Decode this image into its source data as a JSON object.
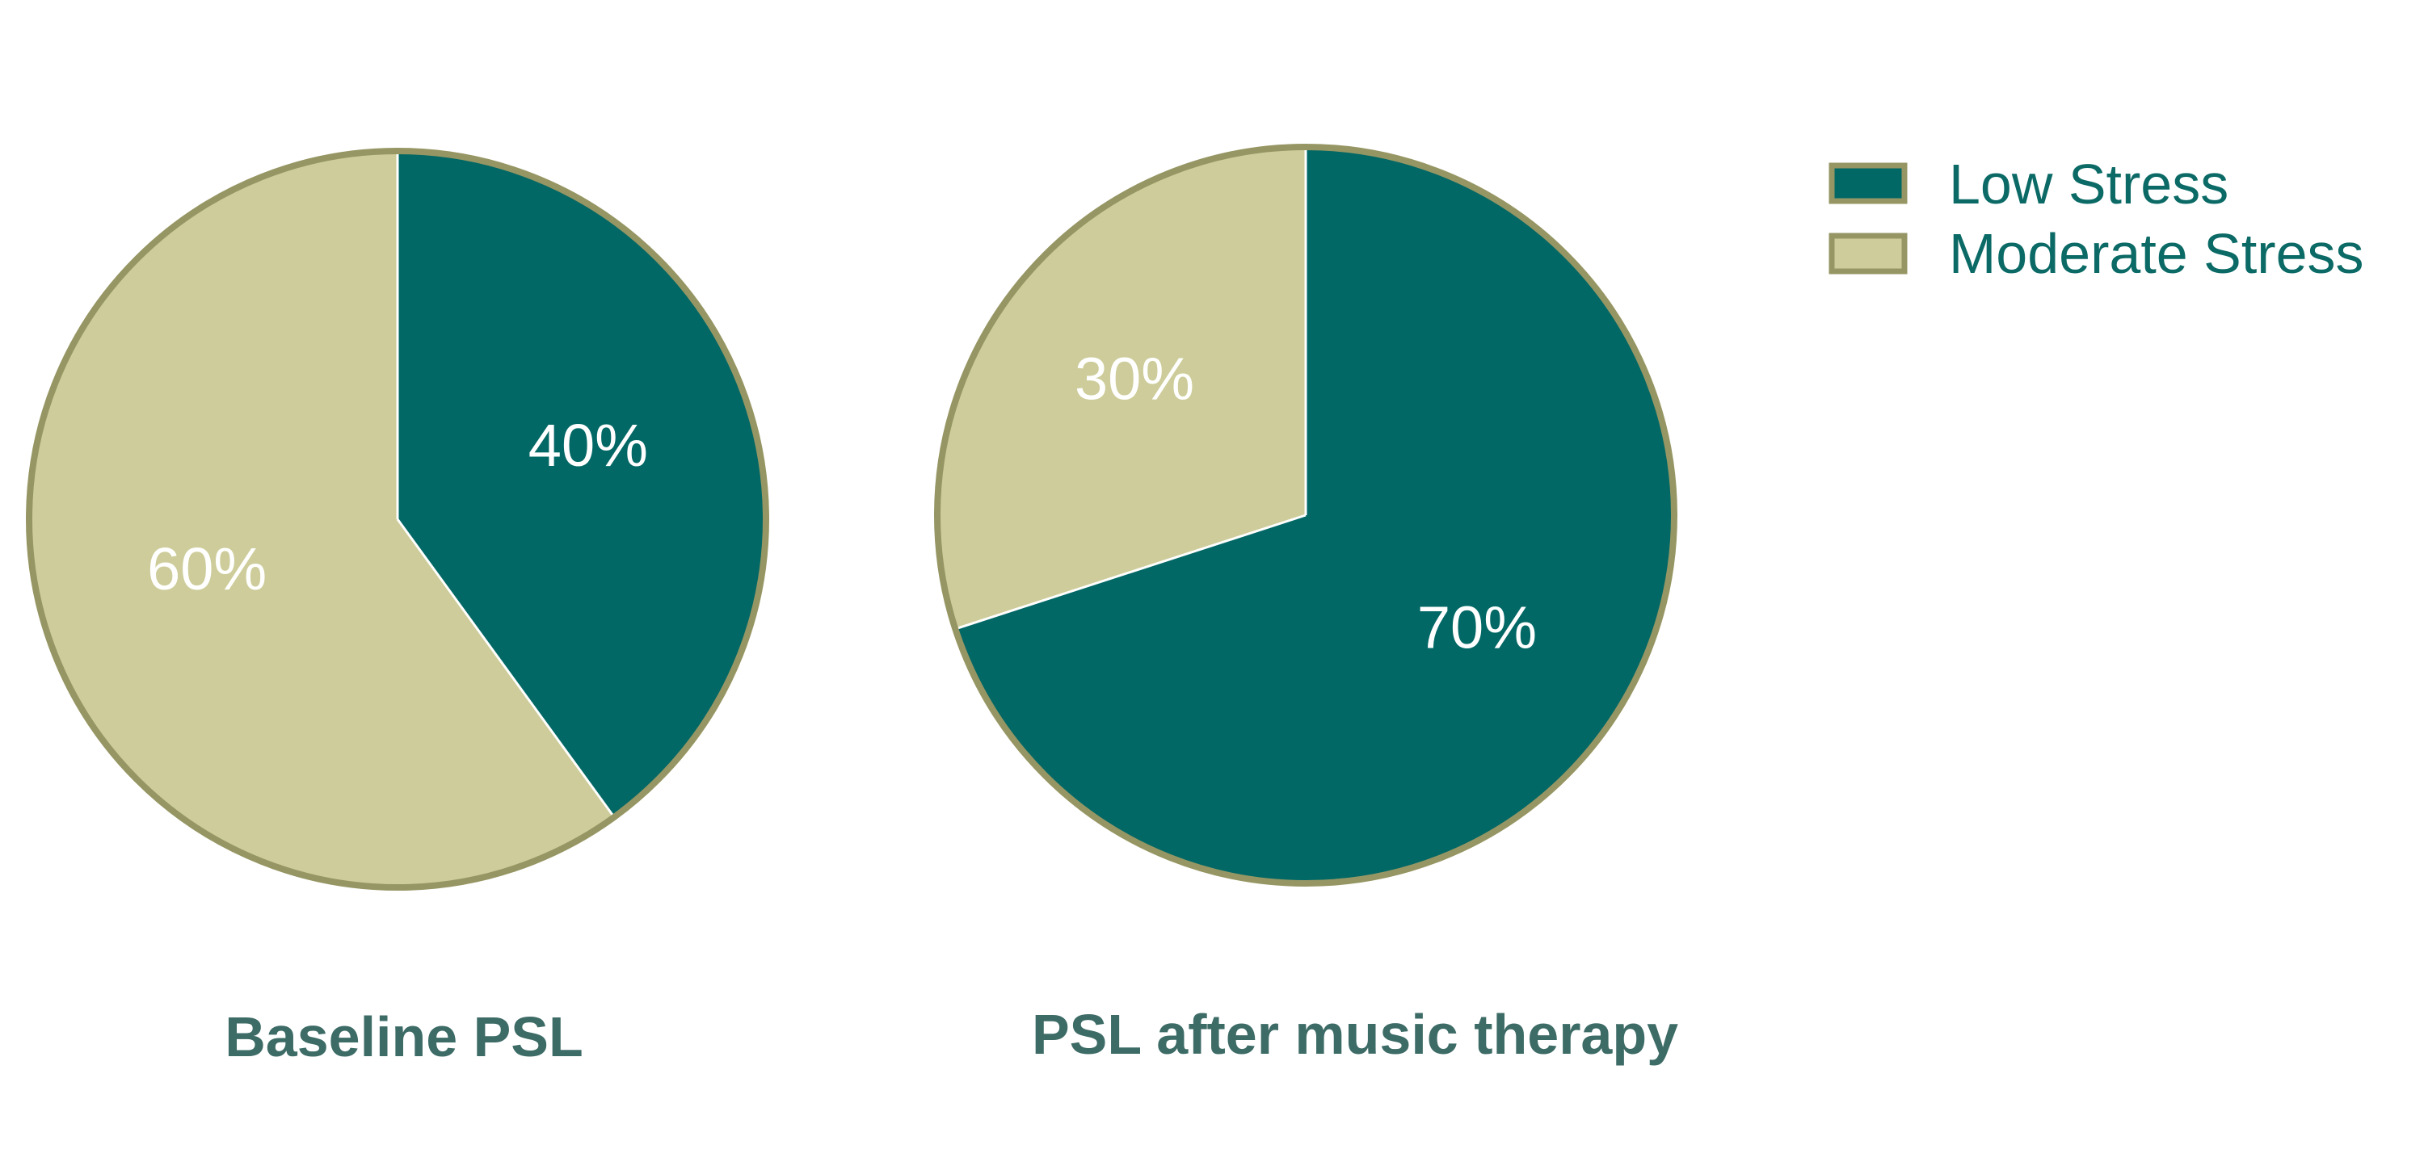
{
  "chart_data": [
    {
      "type": "pie",
      "title": "Baseline PSL",
      "start_angle_deg": 90,
      "direction": "clockwise",
      "slices": [
        {
          "label": "Low Stress",
          "value": 40,
          "value_label": "40%",
          "color": "#026865"
        },
        {
          "label": "Moderate Stress",
          "value": 60,
          "value_label": "60%",
          "color": "#cdcc9a"
        }
      ]
    },
    {
      "type": "pie",
      "title": "PSL after music therapy",
      "start_angle_deg": 90,
      "direction": "clockwise",
      "slices": [
        {
          "label": "Low Stress",
          "value": 70,
          "value_label": "70%",
          "color": "#026865"
        },
        {
          "label": "Moderate Stress",
          "value": 30,
          "value_label": "30%",
          "color": "#cdcc9a"
        }
      ]
    }
  ],
  "legend": {
    "placement": "top-right",
    "entries": [
      {
        "label": "Low Stress",
        "color": "#026865"
      },
      {
        "label": "Moderate Stress",
        "color": "#cdcc9a"
      }
    ]
  },
  "colors": {
    "border": "#969664",
    "label_text": "#ffffff",
    "title_text": "#3d6b66",
    "legend_text": "#0b6a66"
  }
}
